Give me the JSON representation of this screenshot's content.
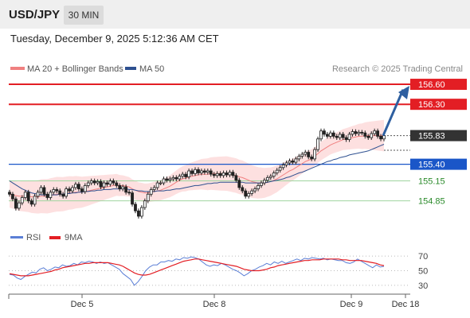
{
  "header": {
    "pair": "USD/JPY",
    "timeframe": "30 MIN",
    "datetime": "Tuesday, December 9, 2025 5:12:36 AM CET"
  },
  "colors": {
    "ma20": "#f08080",
    "ma50": "#2e5090",
    "bollinger_fill": "#fde0e0",
    "resistance": "#e31e24",
    "current": "#333333",
    "support": "#1a56c8",
    "support_light": "#2a8a2a",
    "rsi": "#5b7fd6",
    "rsi_ma": "#e31e24",
    "arrow": "#2e5fa0"
  },
  "chart_data": [
    {
      "type": "line",
      "title": "USD/JPY 30 MIN",
      "legend": [
        "MA 20 + Bollinger Bands",
        "MA 50"
      ],
      "legend_position": "top-left",
      "credit": "Research © 2025 Trading Central",
      "x_ticks": [
        "Dec 5",
        "Dec 8",
        "Dec 9",
        "Dec 18"
      ],
      "ylim": [
        154.5,
        156.72
      ],
      "levels": [
        {
          "label": "156.60",
          "value": 156.6,
          "kind": "resistance"
        },
        {
          "label": "156.30",
          "value": 156.3,
          "kind": "resistance"
        },
        {
          "label": "155.83",
          "value": 155.83,
          "kind": "current"
        },
        {
          "label": "155.40",
          "value": 155.4,
          "kind": "support"
        },
        {
          "label": "155.15",
          "value": 155.15,
          "kind": "support_light"
        },
        {
          "label": "154.85",
          "value": 154.85,
          "kind": "support_light"
        }
      ],
      "price_close": [
        154.95,
        154.88,
        154.74,
        154.82,
        154.9,
        154.98,
        154.85,
        154.8,
        154.92,
        154.98,
        155.05,
        154.95,
        154.9,
        154.98,
        155.02,
        155.0,
        154.95,
        154.92,
        155.03,
        155.0,
        155.05,
        155.1,
        155.03,
        154.99,
        155.08,
        155.12,
        155.15,
        155.12,
        155.14,
        155.06,
        155.12,
        155.1,
        155.15,
        155.12,
        155.08,
        155.03,
        155.06,
        154.98,
        154.97,
        154.8,
        154.7,
        154.62,
        154.75,
        154.85,
        154.95,
        155.02,
        155.05,
        155.12,
        155.12,
        155.18,
        155.16,
        155.18,
        155.2,
        155.18,
        155.22,
        155.25,
        155.21,
        155.3,
        155.26,
        155.32,
        155.27,
        155.3,
        155.28,
        155.3,
        155.25,
        155.23,
        155.26,
        155.23,
        155.27,
        155.24,
        155.28,
        155.23,
        155.16,
        155.05,
        155.0,
        154.92,
        154.96,
        155.0,
        155.03,
        155.08,
        155.12,
        155.16,
        155.2,
        155.22,
        155.27,
        155.31,
        155.35,
        155.39,
        155.42,
        155.45,
        155.43,
        155.48,
        155.52,
        155.55,
        155.58,
        155.51,
        155.48,
        155.62,
        155.78,
        155.9,
        155.85,
        155.82,
        155.87,
        155.82,
        155.8,
        155.85,
        155.8,
        155.77,
        155.85,
        155.89,
        155.86,
        155.88,
        155.87,
        155.82,
        155.8,
        155.86,
        155.9,
        155.82,
        155.78,
        155.83
      ],
      "ma20": [
        154.95,
        154.94,
        154.93,
        154.92,
        154.92,
        154.92,
        154.92,
        154.91,
        154.91,
        154.91,
        154.92,
        154.92,
        154.92,
        154.93,
        154.94,
        154.95,
        154.95,
        154.95,
        154.96,
        154.97,
        154.97,
        154.98,
        154.98,
        154.98,
        154.99,
        155.0,
        155.01,
        155.02,
        155.03,
        155.04,
        155.05,
        155.06,
        155.07,
        155.08,
        155.09,
        155.08,
        155.08,
        155.07,
        155.06,
        155.03,
        155.01,
        154.99,
        154.98,
        154.97,
        154.97,
        154.98,
        154.99,
        155.0,
        155.01,
        155.03,
        155.05,
        155.07,
        155.1,
        155.13,
        155.16,
        155.18,
        155.19,
        155.21,
        155.22,
        155.23,
        155.24,
        155.25,
        155.25,
        155.25,
        155.26,
        155.26,
        155.26,
        155.26,
        155.26,
        155.26,
        155.25,
        155.24,
        155.23,
        155.21,
        155.2,
        155.18,
        155.16,
        155.14,
        155.13,
        155.12,
        155.12,
        155.12,
        155.13,
        155.14,
        155.16,
        155.18,
        155.21,
        155.24,
        155.27,
        155.3,
        155.32,
        155.35,
        155.38,
        155.41,
        155.44,
        155.46,
        155.48,
        155.52,
        155.56,
        155.6,
        155.63,
        155.66,
        155.69,
        155.71,
        155.73,
        155.75,
        155.77,
        155.78,
        155.79,
        155.8,
        155.81,
        155.82,
        155.82,
        155.83,
        155.83,
        155.83,
        155.83,
        155.83,
        155.83,
        155.83
      ],
      "ma50": [
        155.15,
        155.12,
        155.09,
        155.06,
        155.03,
        155.01,
        154.99,
        154.97,
        154.96,
        154.95,
        154.94,
        154.94,
        154.94,
        154.94,
        154.94,
        154.94,
        154.95,
        154.95,
        154.96,
        154.96,
        154.97,
        154.97,
        154.98,
        154.98,
        154.99,
        154.99,
        155.0,
        155.0,
        155.01,
        155.01,
        155.02,
        155.02,
        155.02,
        155.03,
        155.03,
        155.03,
        155.03,
        155.03,
        155.02,
        155.02,
        155.01,
        155.0,
        155.0,
        154.99,
        154.99,
        154.99,
        154.99,
        155.0,
        155.0,
        155.0,
        155.01,
        155.01,
        155.02,
        155.03,
        155.03,
        155.04,
        155.05,
        155.06,
        155.07,
        155.08,
        155.08,
        155.09,
        155.1,
        155.11,
        155.11,
        155.12,
        155.12,
        155.13,
        155.13,
        155.13,
        155.13,
        155.13,
        155.13,
        155.13,
        155.13,
        155.12,
        155.12,
        155.12,
        155.12,
        155.12,
        155.12,
        155.12,
        155.13,
        155.14,
        155.15,
        155.16,
        155.17,
        155.18,
        155.2,
        155.21,
        155.23,
        155.25,
        155.27,
        155.28,
        155.3,
        155.32,
        155.34,
        155.36,
        155.38,
        155.4,
        155.42,
        155.44,
        155.45,
        155.47,
        155.48,
        155.5,
        155.51,
        155.52,
        155.54,
        155.55,
        155.56,
        155.57,
        155.58,
        155.59,
        155.6,
        155.62,
        155.64,
        155.66,
        155.68,
        155.7
      ]
    },
    {
      "type": "line",
      "title": "RSI",
      "legend": [
        "RSI",
        "9MA"
      ],
      "legend_position": "top-left",
      "y_ticks": [
        70,
        50,
        30
      ],
      "ylim": [
        20,
        80
      ],
      "rsi": [
        45,
        44,
        40,
        38,
        42,
        45,
        48,
        47,
        52,
        54,
        50,
        52,
        55,
        54,
        58,
        56,
        57,
        60,
        58,
        62,
        61,
        63,
        62,
        60,
        62,
        60,
        61,
        58,
        55,
        52,
        46,
        42,
        38,
        30,
        35,
        42,
        50,
        55,
        58,
        58,
        62,
        62,
        64,
        63,
        66,
        65,
        68,
        67,
        69,
        68,
        66,
        62,
        58,
        56,
        58,
        57,
        60,
        58,
        55,
        52,
        50,
        47,
        43,
        46,
        50,
        52,
        55,
        57,
        60,
        58,
        62,
        60,
        63,
        60,
        62,
        64,
        66,
        64,
        67,
        66,
        68,
        67,
        66,
        67,
        65,
        66,
        65,
        64,
        64,
        61,
        60,
        62,
        66,
        63,
        60,
        57,
        54,
        58,
        55,
        56
      ],
      "rsi_ma": [
        46,
        45,
        44,
        43,
        43,
        43,
        44,
        45,
        46,
        47,
        48,
        49,
        51,
        52,
        54,
        55,
        56,
        57,
        58,
        59,
        60,
        60,
        61,
        61,
        61,
        61,
        61,
        60,
        59,
        58,
        56,
        53,
        50,
        47,
        45,
        44,
        44,
        45,
        47,
        49,
        51,
        53,
        55,
        57,
        59,
        61,
        63,
        64,
        65,
        66,
        66,
        65,
        64,
        63,
        62,
        61,
        60,
        59,
        58,
        57,
        56,
        54,
        52,
        51,
        50,
        50,
        50,
        51,
        52,
        54,
        55,
        57,
        58,
        59,
        60,
        61,
        62,
        63,
        64,
        64,
        65,
        65,
        65,
        66,
        66,
        66,
        66,
        66,
        65,
        65,
        64,
        64,
        64,
        64,
        63,
        62,
        61,
        60,
        58,
        57
      ]
    }
  ]
}
